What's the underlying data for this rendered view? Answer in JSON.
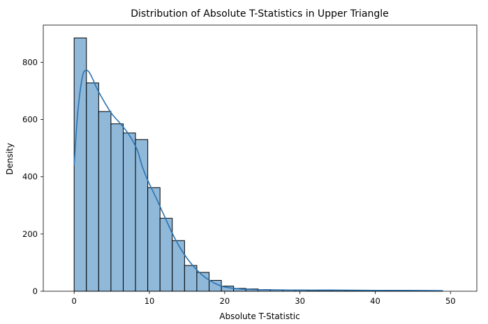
{
  "chart_data": {
    "type": "bar",
    "title": "Distribution of Absolute T-Statistics in Upper Triangle",
    "xlabel": "Absolute T-Statistic",
    "ylabel": "Density",
    "xlim": [
      -4.1,
      53.5
    ],
    "ylim": [
      0,
      930
    ],
    "xticks": [
      0,
      10,
      20,
      30,
      40,
      50
    ],
    "yticks": [
      0,
      200,
      400,
      600,
      800
    ],
    "bin_width": 1.63,
    "bins_start": 0,
    "values": [
      885,
      728,
      628,
      585,
      553,
      530,
      362,
      255,
      177,
      90,
      66,
      38,
      18,
      10,
      8,
      6,
      5,
      4,
      4,
      3,
      3,
      3,
      2,
      2,
      2,
      2,
      2,
      2,
      2,
      2
    ],
    "kde_x": [
      0,
      0.4,
      0.8,
      1.2,
      1.6,
      2.0,
      2.5,
      3.0,
      4,
      5,
      6,
      7,
      7.5,
      8,
      8.5,
      9,
      9.5,
      10,
      11,
      12,
      13,
      14,
      15,
      16,
      17,
      18,
      19,
      20,
      22,
      24,
      26,
      30,
      34,
      40,
      44,
      49
    ],
    "kde_y": [
      440,
      600,
      700,
      760,
      772,
      765,
      740,
      710,
      662,
      620,
      590,
      558,
      538,
      515,
      485,
      440,
      405,
      375,
      320,
      262,
      205,
      155,
      115,
      83,
      57,
      38,
      24,
      15,
      8,
      6,
      5,
      4,
      4,
      3,
      3,
      2
    ],
    "bar_color": "#8fb8d9",
    "bar_edge": "#000000",
    "line_color": "#2b73b0",
    "grid": false,
    "legend": "none"
  }
}
